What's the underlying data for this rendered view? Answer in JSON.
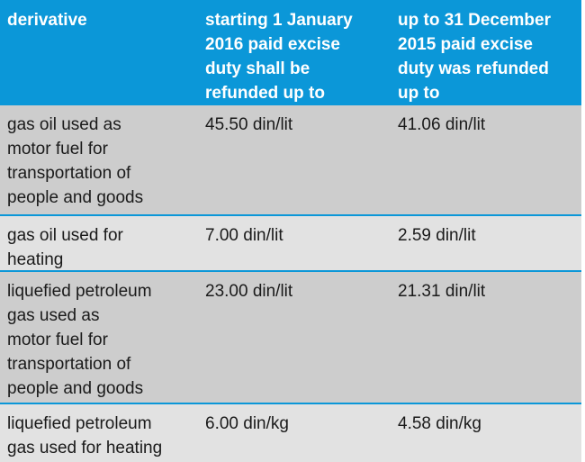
{
  "table": {
    "header": [
      "derivative",
      "starting 1 January\n2016 paid excise\nduty shall be\nrefunded up to",
      "up to 31 December\n2015 paid excise\nduty was refunded\nup to"
    ],
    "rows": [
      {
        "cells": [
          "gas oil used as\nmotor fuel for\ntransportation of\npeople and goods",
          "45.50 din/lit",
          "41.06 din/lit"
        ]
      },
      {
        "cells": [
          "gas oil used for\nheating",
          "7.00 din/lit",
          "2.59 din/lit"
        ]
      },
      {
        "cells": [
          "liquefied petroleum\ngas used as\nmotor fuel for\ntransportation of\npeople and goods",
          "23.00 din/lit",
          "21.31 din/lit"
        ]
      },
      {
        "cells": [
          "liquefied petroleum\ngas used for heating",
          "6.00 din/kg",
          "4.58 din/kg"
        ]
      }
    ]
  },
  "colors": {
    "header_bg": "#0b97d8",
    "divider": "#0b97d8",
    "row_dark": "#cdcdcd",
    "row_light": "#e2e2e2",
    "header_text": "#ffffff",
    "body_text": "#1a1a1a",
    "page_bg": "#ffffff"
  }
}
